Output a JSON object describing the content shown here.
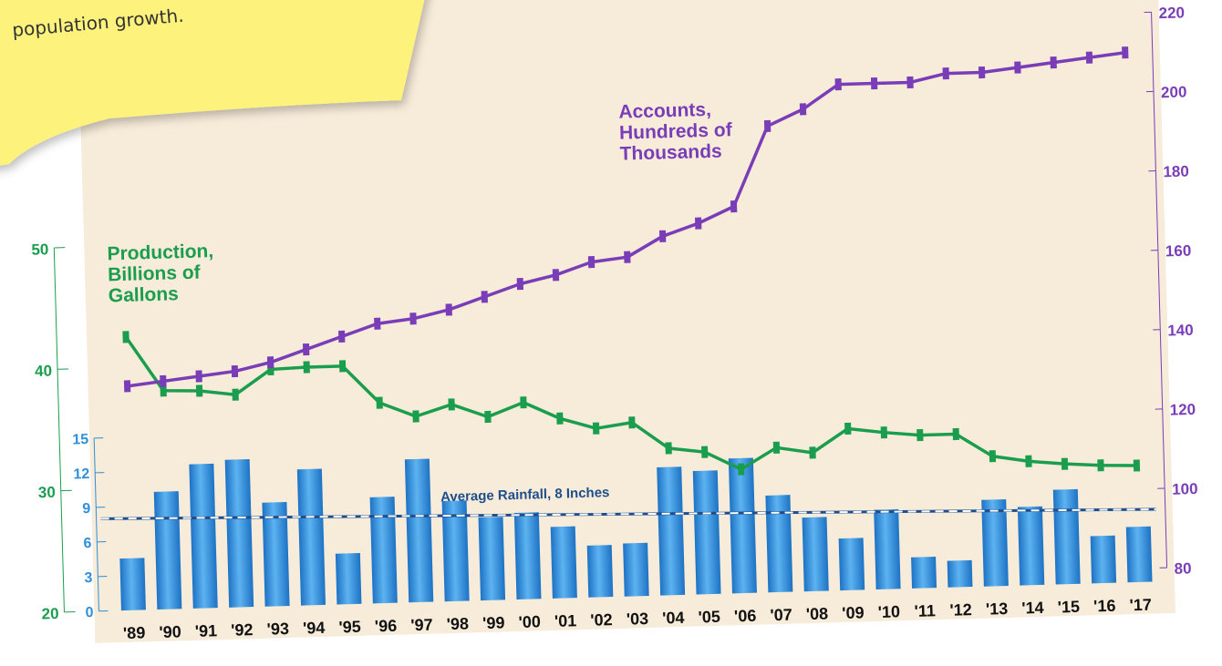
{
  "note": {
    "text": "population growth."
  },
  "colors": {
    "accounts": "#7a3db8",
    "production": "#1a9e4e",
    "rainfall": "#2f8fd8",
    "average": "#1f4e8c",
    "panel": "#f7ebd9",
    "sticky": "#fdf27c"
  },
  "chart_data": {
    "type": "bar",
    "categories": [
      "'89",
      "'90",
      "'91",
      "'92",
      "'93",
      "'94",
      "'95",
      "'96",
      "'97",
      "'98",
      "'99",
      "'00",
      "'01",
      "'02",
      "'03",
      "'04",
      "'05",
      "'06",
      "'07",
      "'08",
      "'09",
      "'10",
      "'11",
      "'12",
      "'13",
      "'14",
      "'15",
      "'16",
      "'17"
    ],
    "series": [
      {
        "name": "Accounts, Hundreds of Thousands",
        "kind": "line",
        "axis": "right",
        "values": [
          133,
          134,
          135,
          136,
          138,
          141,
          144,
          147,
          148,
          150,
          153,
          156,
          158,
          161,
          162,
          167,
          170,
          174,
          194,
          198,
          204,
          204,
          204,
          206,
          206,
          207,
          208,
          209,
          210
        ]
      },
      {
        "name": "Production, Billions of Gallons",
        "kind": "line",
        "axis": "left-outer",
        "values": [
          42.5,
          38,
          37.9,
          37.5,
          39.5,
          39.6,
          39.6,
          36.5,
          35.3,
          36.2,
          35.1,
          36.2,
          34.8,
          33.9,
          34.3,
          32.1,
          31.7,
          30.2,
          31.9,
          31.4,
          33.3,
          32.9,
          32.6,
          32.6,
          30.7,
          30.2,
          29.9,
          29.7,
          29.6
        ]
      },
      {
        "name": "Rainfall",
        "kind": "bar",
        "axis": "left-inner",
        "values": [
          4.5,
          10.2,
          12.5,
          12.8,
          9.0,
          11.8,
          4.4,
          9.2,
          12.4,
          8.7,
          7.2,
          7.5,
          6.2,
          4.5,
          4.6,
          11.1,
          10.7,
          11.7,
          8.4,
          6.4,
          4.5,
          6.9,
          2.7,
          2.3,
          7.5,
          6.8,
          8.2,
          4.1,
          4.8
        ]
      }
    ],
    "average_rainfall": {
      "label": "Average Rainfall, 8 Inches",
      "value": 8
    },
    "axes": {
      "left_outer": {
        "ticks": [
          "50",
          "40",
          "30",
          "20"
        ],
        "range": [
          20,
          50
        ]
      },
      "left_inner": {
        "ticks": [
          "15",
          "12",
          "9",
          "6",
          "3",
          "0"
        ],
        "range": [
          0,
          15
        ]
      },
      "right": {
        "ticks": [
          "220",
          "200",
          "180",
          "160",
          "140",
          "120",
          "100",
          "80"
        ],
        "range": [
          80,
          220
        ]
      }
    },
    "labels": {
      "accounts": [
        "Accounts,",
        "Hundreds of",
        "Thousands"
      ],
      "production": [
        "Production,",
        "Billions of",
        "Gallons"
      ]
    }
  }
}
